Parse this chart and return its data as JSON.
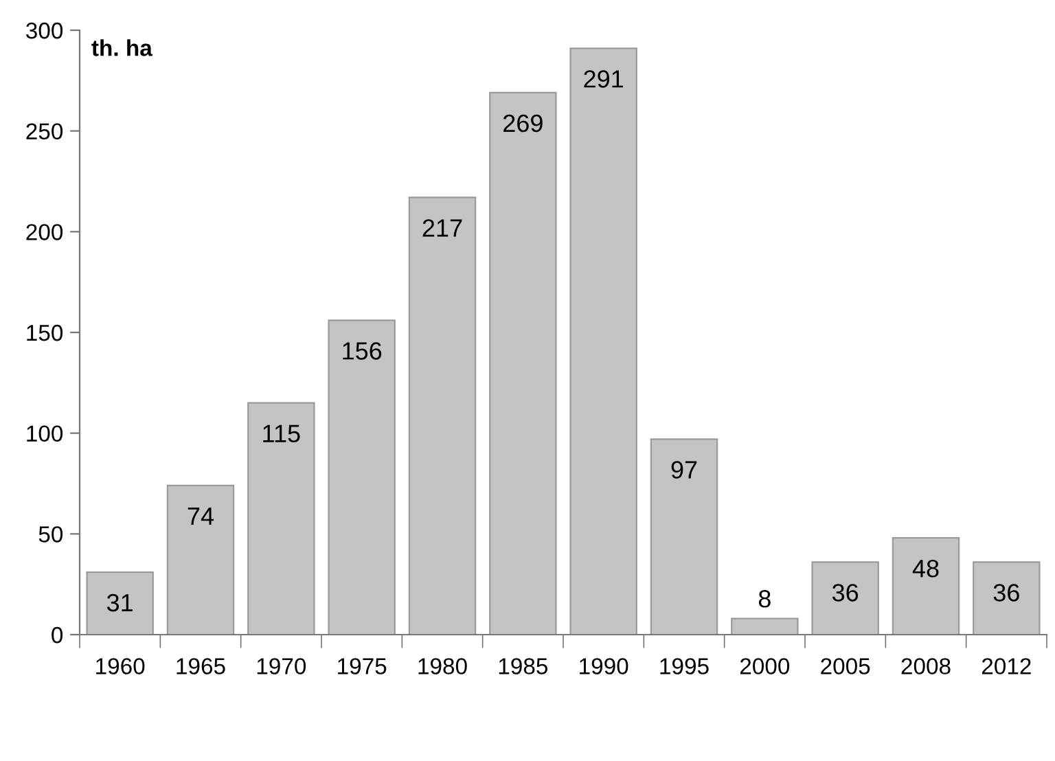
{
  "chart_data": {
    "type": "bar",
    "ylabel": "th. ha",
    "categories": [
      "1960",
      "1965",
      "1970",
      "1975",
      "1980",
      "1985",
      "1990",
      "1995",
      "2000",
      "2005",
      "2008",
      "2012"
    ],
    "values": [
      31,
      74,
      115,
      156,
      217,
      269,
      291,
      97,
      8,
      36,
      48,
      36
    ],
    "color": "#c4c4c4",
    "ylim": [
      0,
      300
    ],
    "yticks": [
      0,
      50,
      100,
      150,
      200,
      250,
      300
    ],
    "grid": false,
    "data_labels": true
  }
}
